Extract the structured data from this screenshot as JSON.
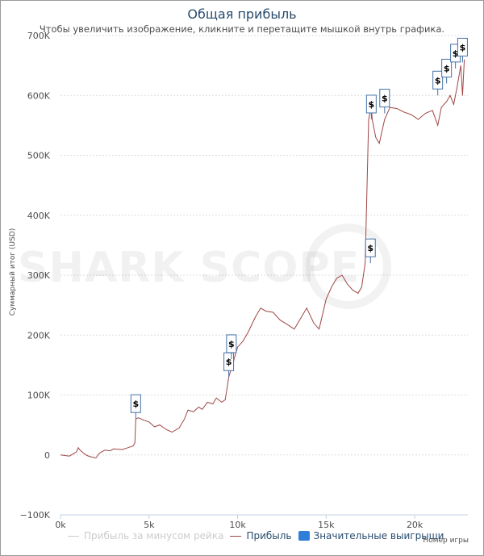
{
  "chart_data": {
    "type": "line",
    "title": "Общая прибыль",
    "subtitle": "Чтобы увеличить изображение, кликните и перетащите мышкой внутрь графика.",
    "ylabel": "Суммарный итог (USD)",
    "xlabel": "Номер игры",
    "ylim": [
      -100000,
      700000
    ],
    "xlim": [
      0,
      23000
    ],
    "y_ticks": [
      "−100K",
      "0",
      "100K",
      "200K",
      "300K",
      "400K",
      "500K",
      "600K",
      "700K"
    ],
    "x_ticks": [
      "0k",
      "5k",
      "10k",
      "15k",
      "20k"
    ],
    "grid": true,
    "legend": {
      "position": "bottom"
    },
    "series": [
      {
        "name": "Прибыль за минусом рейка",
        "color": "#cccccc",
        "visible": false,
        "x": [],
        "y": []
      },
      {
        "name": "Прибыль",
        "color": "#a04545",
        "x": [
          0,
          500,
          900,
          1000,
          1100,
          1300,
          1500,
          1700,
          2000,
          2200,
          2500,
          2800,
          3000,
          3500,
          3800,
          4100,
          4200,
          4250,
          4400,
          4700,
          5000,
          5300,
          5600,
          6000,
          6300,
          6700,
          7000,
          7200,
          7500,
          7800,
          8000,
          8300,
          8600,
          8800,
          9100,
          9300,
          9500,
          9600,
          9700,
          9800,
          10000,
          10300,
          10600,
          11000,
          11300,
          11600,
          12000,
          12400,
          12800,
          13200,
          13600,
          13900,
          14300,
          14600,
          15000,
          15300,
          15600,
          15900,
          16200,
          16500,
          16800,
          17000,
          17200,
          17400,
          17500,
          17550,
          17600,
          17800,
          18000,
          18300,
          18600,
          19000,
          19400,
          19800,
          20200,
          20600,
          21000,
          21300,
          21500,
          21800,
          22000,
          22200,
          22400,
          22600,
          22700,
          22800
        ],
        "y": [
          0,
          -2000,
          5000,
          12000,
          8000,
          3000,
          -1000,
          -3000,
          -5000,
          3000,
          8000,
          7000,
          10000,
          9000,
          12000,
          15000,
          20000,
          60000,
          62000,
          58000,
          55000,
          47000,
          50000,
          42000,
          38000,
          45000,
          60000,
          75000,
          72000,
          80000,
          76000,
          88000,
          85000,
          95000,
          88000,
          92000,
          130000,
          140000,
          145000,
          160000,
          180000,
          190000,
          205000,
          230000,
          245000,
          240000,
          238000,
          225000,
          218000,
          210000,
          230000,
          245000,
          220000,
          210000,
          260000,
          280000,
          295000,
          300000,
          285000,
          275000,
          270000,
          280000,
          320000,
          560000,
          575000,
          580000,
          560000,
          530000,
          520000,
          560000,
          580000,
          578000,
          572000,
          568000,
          560000,
          570000,
          575000,
          550000,
          580000,
          590000,
          600000,
          585000,
          615000,
          650000,
          600000,
          660000
        ]
      },
      {
        "name": "Значительные выигрыши",
        "color": "#2f7ed8",
        "marker": "$",
        "x": [
          4250,
          9500,
          9650,
          17500,
          17550,
          18300,
          21300,
          21800,
          22300,
          22700
        ],
        "y": [
          60000,
          130000,
          160000,
          320000,
          560000,
          570000,
          600000,
          620000,
          645000,
          655000
        ]
      }
    ]
  }
}
